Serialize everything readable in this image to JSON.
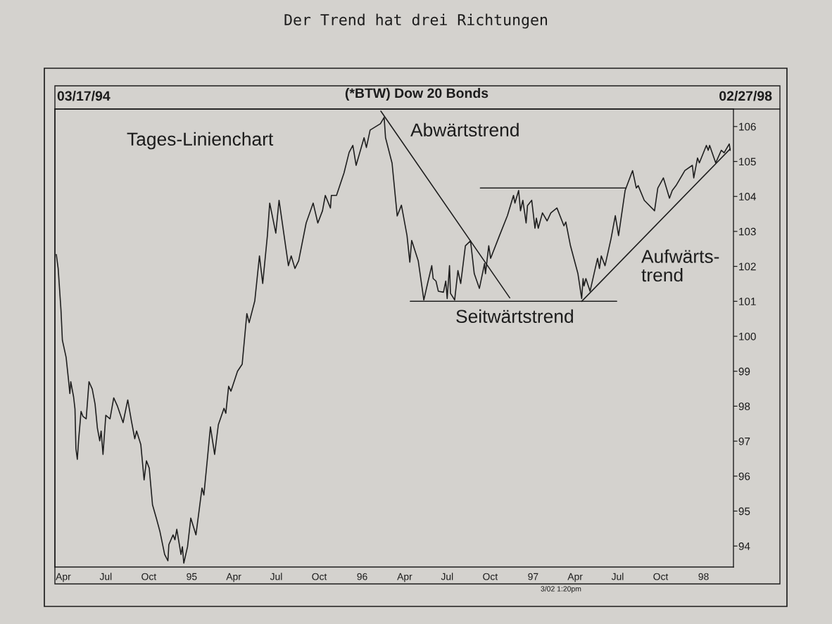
{
  "chart_data": {
    "type": "line",
    "title": "Der Trend hat drei Richtungen",
    "subtitle": "(*BTW) Dow 20 Bonds",
    "annotations": [
      "03/17/94",
      "02/27/98",
      "Tages-Linienchart",
      "Abwärtstrend",
      "Seitwärtstrend",
      "Aufwärts-\ntrend",
      "3/02 1:20pm"
    ],
    "xlim": [
      "1994-03-14",
      "1998-03-06"
    ],
    "xticks": [
      {
        "value": "1994-04-01",
        "label": "Apr"
      },
      {
        "value": "1994-07-01",
        "label": "Jul"
      },
      {
        "value": "1994-10-01",
        "label": "Oct"
      },
      {
        "value": "1995-01-01",
        "label": "95"
      },
      {
        "value": "1995-04-01",
        "label": "Apr"
      },
      {
        "value": "1995-07-01",
        "label": "Jul"
      },
      {
        "value": "1995-10-01",
        "label": "Oct"
      },
      {
        "value": "1996-01-01",
        "label": "96"
      },
      {
        "value": "1996-04-01",
        "label": "Apr"
      },
      {
        "value": "1996-07-01",
        "label": "Jul"
      },
      {
        "value": "1996-10-01",
        "label": "Oct"
      },
      {
        "value": "1997-01-01",
        "label": "97"
      },
      {
        "value": "1997-04-01",
        "label": "Apr"
      },
      {
        "value": "1997-07-01",
        "label": "Jul"
      },
      {
        "value": "1997-10-01",
        "label": "Oct"
      },
      {
        "value": "1998-01-01",
        "label": "98"
      }
    ],
    "ylim": [
      93.4,
      106.5
    ],
    "yticks": [
      94,
      95,
      96,
      97,
      98,
      99,
      100,
      101,
      102,
      103,
      104,
      105,
      106
    ],
    "grid": false,
    "line_style": "solid",
    "series": [
      {
        "color": "#1e1e1e",
        "x": [
          "1994-03-17",
          "1994-03-21",
          "1994-03-27",
          "1994-03-30",
          "1994-04-07",
          "1994-04-12",
          "1994-04-15",
          "1994-04-17",
          "1994-04-23",
          "1994-04-26",
          "1994-04-28",
          "1994-05-01",
          "1994-05-04",
          "1994-05-09",
          "1994-05-13",
          "1994-05-20",
          "1994-05-26",
          "1994-06-02",
          "1994-06-08",
          "1994-06-13",
          "1994-06-18",
          "1994-06-21",
          "1994-06-25",
          "1994-07-01",
          "1994-07-10",
          "1994-07-18",
          "1994-07-26",
          "1994-08-07",
          "1994-08-17",
          "1994-08-25",
          "1994-09-01",
          "1994-09-05",
          "1994-09-14",
          "1994-09-21",
          "1994-09-26",
          "1994-10-02",
          "1994-10-09",
          "1994-10-18",
          "1994-10-25",
          "1994-11-04",
          "1994-11-11",
          "1994-11-13",
          "1994-11-22",
          "1994-11-26",
          "1994-11-30",
          "1994-12-09",
          "1994-12-12",
          "1994-12-15",
          "1994-12-23",
          "1994-12-30",
          "1995-01-10",
          "1995-01-23",
          "1995-01-27",
          "1995-02-04",
          "1995-02-10",
          "1995-02-19",
          "1995-02-27",
          "1995-03-11",
          "1995-03-15",
          "1995-03-21",
          "1995-03-26",
          "1995-04-09",
          "1995-04-19",
          "1995-04-29",
          "1995-05-04",
          "1995-05-16",
          "1995-05-26",
          "1995-06-02",
          "1995-06-12",
          "1995-06-17",
          "1995-06-30",
          "1995-07-07",
          "1995-07-27",
          "1995-08-02",
          "1995-08-10",
          "1995-08-18",
          "1995-09-03",
          "1995-09-18",
          "1995-09-28",
          "1995-10-08",
          "1995-10-14",
          "1995-10-25",
          "1995-10-27",
          "1995-11-07",
          "1995-11-23",
          "1995-12-04",
          "1995-12-12",
          "1995-12-19",
          "1996-01-05",
          "1996-01-10",
          "1996-01-18",
          "1996-02-09",
          "1996-02-17",
          "1996-02-20",
          "1996-03-05",
          "1996-03-16",
          "1996-03-25",
          "1996-04-06",
          "1996-04-12",
          "1996-04-16",
          "1996-04-30",
          "1996-05-12",
          "1996-05-20",
          "1996-05-29",
          "1996-06-01",
          "1996-06-07",
          "1996-06-12",
          "1996-06-23",
          "1996-06-28",
          "1996-07-01",
          "1996-07-06",
          "1996-07-08",
          "1996-07-17",
          "1996-07-24",
          "1996-07-30",
          "1996-08-09",
          "1996-08-20",
          "1996-08-28",
          "1996-09-08",
          "1996-09-19",
          "1996-09-21",
          "1996-09-28",
          "1996-10-02",
          "1996-10-21",
          "1996-11-07",
          "1996-11-20",
          "1996-11-23",
          "1996-12-01",
          "1996-12-05",
          "1996-12-10",
          "1996-12-17",
          "1996-12-20",
          "1996-12-29",
          "1997-01-05",
          "1997-01-08",
          "1997-01-12",
          "1997-01-21",
          "1997-01-31",
          "1997-02-08",
          "1997-02-21",
          "1997-03-08",
          "1997-03-12",
          "1997-03-22",
          "1997-04-07",
          "1997-04-15",
          "1997-04-18",
          "1997-04-20",
          "1997-04-24",
          "1997-05-03",
          "1997-05-19",
          "1997-05-23",
          "1997-05-27",
          "1997-06-04",
          "1997-06-17",
          "1997-06-26",
          "1997-07-03",
          "1997-07-17",
          "1997-08-02",
          "1997-08-10",
          "1997-08-14",
          "1997-08-27",
          "1997-09-18",
          "1997-09-25",
          "1997-10-07",
          "1997-10-20",
          "1997-10-26",
          "1997-11-03",
          "1997-11-22",
          "1997-12-08",
          "1997-12-11",
          "1997-12-19",
          "1997-12-23",
          "1998-01-07",
          "1998-01-11",
          "1998-01-14",
          "1998-01-27",
          "1998-02-08",
          "1998-02-14",
          "1998-02-25",
          "1998-02-27"
        ],
        "values": [
          102.34,
          101.94,
          100.75,
          99.89,
          99.4,
          98.77,
          98.36,
          98.7,
          98.27,
          97.92,
          96.79,
          96.48,
          97.07,
          97.85,
          97.71,
          97.64,
          98.7,
          98.49,
          98.06,
          97.37,
          97.01,
          97.29,
          96.62,
          97.74,
          97.64,
          98.24,
          98.0,
          97.53,
          98.18,
          97.57,
          97.07,
          97.29,
          96.9,
          95.89,
          96.44,
          96.23,
          95.18,
          94.76,
          94.41,
          93.76,
          93.58,
          94.04,
          94.32,
          94.18,
          94.48,
          93.76,
          93.98,
          93.51,
          93.98,
          94.8,
          94.32,
          95.66,
          95.46,
          96.56,
          97.41,
          96.62,
          97.47,
          97.94,
          97.8,
          98.57,
          98.43,
          99.0,
          99.2,
          100.65,
          100.39,
          101.01,
          102.3,
          101.51,
          102.88,
          103.81,
          102.95,
          103.89,
          102.02,
          102.3,
          101.94,
          102.16,
          103.24,
          103.81,
          103.24,
          103.59,
          104.03,
          103.67,
          104.03,
          104.03,
          104.67,
          105.26,
          105.46,
          104.89,
          105.68,
          105.4,
          105.9,
          106.08,
          106.26,
          105.68,
          104.95,
          103.44,
          103.75,
          102.88,
          102.12,
          102.74,
          102.16,
          101.04,
          101.51,
          102.02,
          101.65,
          101.58,
          101.29,
          101.26,
          101.58,
          101.08,
          102.02,
          101.23,
          101.04,
          101.88,
          101.51,
          102.59,
          102.73,
          101.79,
          101.37,
          102.08,
          101.79,
          102.59,
          102.23,
          102.88,
          103.45,
          104.03,
          103.81,
          104.17,
          103.59,
          103.89,
          103.24,
          103.74,
          103.89,
          103.09,
          103.38,
          103.09,
          103.53,
          103.3,
          103.53,
          103.67,
          103.16,
          103.27,
          102.59,
          101.79,
          101.08,
          101.65,
          101.44,
          101.65,
          101.29,
          102.23,
          101.94,
          102.3,
          102.02,
          102.8,
          103.45,
          102.88,
          104.17,
          104.74,
          104.24,
          104.31,
          103.89,
          103.59,
          104.24,
          104.53,
          103.95,
          104.17,
          104.31,
          104.74,
          104.89,
          104.53,
          105.1,
          104.96,
          105.46,
          105.32,
          105.46,
          104.96,
          105.32,
          105.25,
          105.5,
          105.32
        ]
      },
      {
        "color": "#1e1e1e",
        "x": [
          "1996-02-10",
          "1996-11-12"
        ],
        "values": [
          106.44,
          101.1
        ]
      },
      {
        "color": "#1e1e1e",
        "x": [
          "1996-04-13",
          "1997-06-29"
        ],
        "values": [
          101.0,
          101.0
        ]
      },
      {
        "color": "#1e1e1e",
        "x": [
          "1996-09-10",
          "1997-07-19"
        ],
        "values": [
          104.24,
          104.24
        ]
      },
      {
        "color": "#1e1e1e",
        "x": [
          "1997-04-15",
          "1998-02-27"
        ],
        "values": [
          101.0,
          105.36
        ]
      }
    ]
  }
}
